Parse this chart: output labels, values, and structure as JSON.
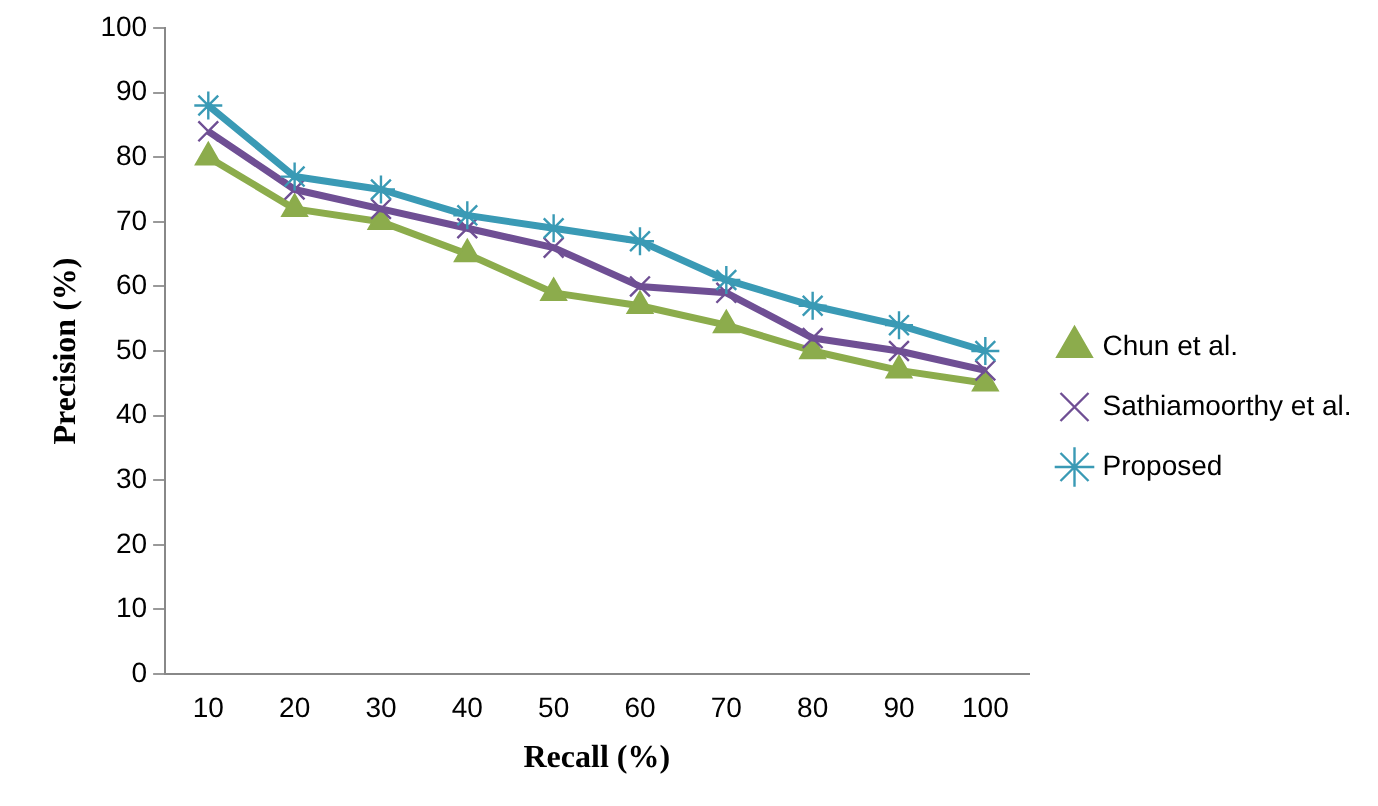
{
  "chart_data": {
    "type": "line",
    "xlabel": "Recall (%)",
    "ylabel": "Precision (%)",
    "categories": [
      "10",
      "20",
      "30",
      "40",
      "50",
      "60",
      "70",
      "80",
      "90",
      "100"
    ],
    "series": [
      {
        "name": "Chun et al.",
        "color": "#8cac4c",
        "marker": "triangle",
        "values": [
          80,
          72,
          70,
          65,
          59,
          57,
          54,
          50,
          47,
          45
        ]
      },
      {
        "name": "Sathiamoorthy et al.",
        "color": "#6f4f94",
        "marker": "cross",
        "values": [
          84,
          75,
          72,
          69,
          66,
          60,
          59,
          52,
          50,
          47
        ]
      },
      {
        "name": "Proposed",
        "color": "#3a9ab5",
        "marker": "cross",
        "values": [
          88,
          77,
          75,
          71,
          69,
          67,
          61,
          57,
          54,
          50
        ]
      }
    ],
    "ylim": [
      0,
      100
    ],
    "yticks": [
      0,
      10,
      20,
      30,
      40,
      50,
      60,
      70,
      80,
      90,
      100
    ],
    "grid": false,
    "legend": "right",
    "line_style": "solid"
  }
}
